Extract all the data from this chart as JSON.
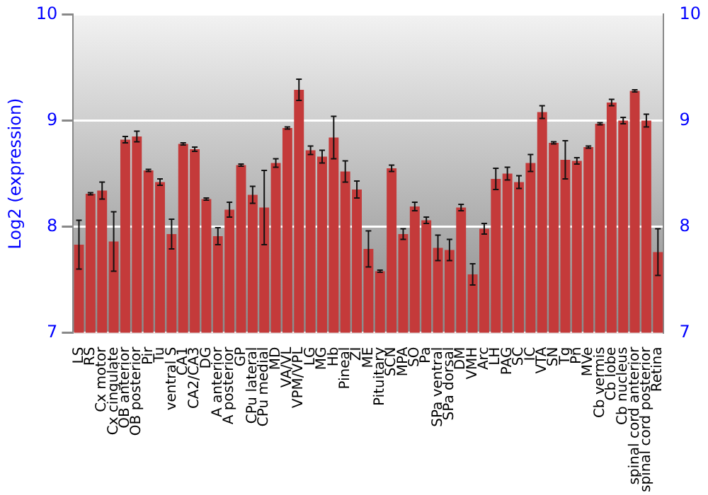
{
  "chart_data": {
    "type": "bar",
    "ylabel": "Log2 (expression)",
    "categories": [
      "LS",
      "RS",
      "Cx motor",
      "Cx cingulate",
      "OB anterior",
      "OB posterior",
      "Pir",
      "Tu",
      "ventral S",
      "CA1",
      "CA2/CA3",
      "DG",
      "A anterior",
      "A posterior",
      "GP",
      "CPu lateral",
      "CPu medial",
      "MD",
      "VA/VL",
      "VPM/VPL",
      "LG",
      "MG",
      "Hb",
      "Pineal",
      "ZI",
      "ME",
      "Pituitary",
      "SCN",
      "MPA",
      "SO",
      "Pa",
      "SPa ventral",
      "SPa dorsal",
      "DM",
      "VMH",
      "Arc",
      "LH",
      "PAG",
      "SC",
      "IC",
      "VTA",
      "SN",
      "Tg",
      "Pn",
      "MVe",
      "Cb vermis",
      "Cb lobe",
      "Cb nucleus",
      "spinal cord anterior",
      "spinal cord posterior",
      "Retina"
    ],
    "values": [
      7.83,
      8.31,
      8.34,
      7.86,
      8.82,
      8.85,
      8.53,
      8.42,
      7.93,
      8.78,
      8.73,
      8.26,
      7.91,
      8.16,
      8.58,
      8.3,
      8.18,
      8.6,
      8.93,
      9.29,
      8.72,
      8.66,
      8.84,
      8.52,
      8.35,
      7.79,
      7.58,
      8.55,
      7.93,
      8.19,
      8.06,
      7.8,
      7.78,
      8.18,
      7.55,
      7.98,
      8.45,
      8.5,
      8.42,
      8.6,
      9.08,
      8.79,
      8.63,
      8.62,
      8.75,
      8.97,
      9.17,
      9.0,
      9.28,
      9.0,
      7.76
    ],
    "errors": [
      0.23,
      0.01,
      0.08,
      0.28,
      0.03,
      0.05,
      0.01,
      0.03,
      0.14,
      0.01,
      0.02,
      0.01,
      0.08,
      0.07,
      0.01,
      0.08,
      0.35,
      0.04,
      0.01,
      0.1,
      0.04,
      0.06,
      0.2,
      0.1,
      0.08,
      0.17,
      0.01,
      0.03,
      0.05,
      0.04,
      0.03,
      0.12,
      0.1,
      0.03,
      0.1,
      0.05,
      0.1,
      0.06,
      0.06,
      0.08,
      0.06,
      0.01,
      0.18,
      0.03,
      0.01,
      0.01,
      0.03,
      0.03,
      0.01,
      0.06,
      0.22
    ],
    "color": "#c43a3a",
    "ylim": [
      7,
      10
    ],
    "yticks": [
      7,
      8,
      9,
      10
    ],
    "y2lim": [
      7,
      10
    ],
    "y2ticks": [
      7,
      8,
      9,
      10
    ],
    "grid": "y",
    "legend": false
  }
}
